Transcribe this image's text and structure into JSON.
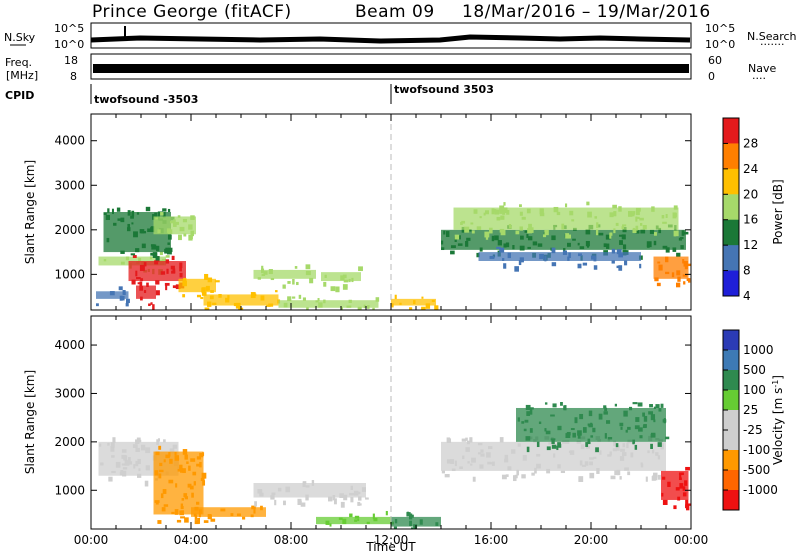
{
  "header": {
    "title": "Prince George (fitACF)",
    "beam": "Beam 09",
    "date_range": "18/Mar/2016 – 19/Mar/2016"
  },
  "strip_panels": {
    "nsky": {
      "label": "N.Sky",
      "ticks": [
        "10^5",
        "10^0"
      ]
    },
    "nsearch": {
      "label": "N.Search",
      "ticks": [
        "10^5",
        "10^0"
      ]
    },
    "freq": {
      "label_line1": "Freq.",
      "label_line2": "[MHz]",
      "ticks": [
        "18",
        "8"
      ]
    },
    "nave": {
      "label": "Nave",
      "ticks": [
        "60",
        "0"
      ]
    },
    "cpid": {
      "label": "CPID",
      "programs": [
        "twofsound -3503",
        "twofsound 3503"
      ]
    }
  },
  "colorbars": {
    "power": {
      "label": "Power [dB]",
      "ticks": [
        "28",
        "24",
        "20",
        "16",
        "12",
        "8",
        "4"
      ],
      "colors": [
        "#e41a1c",
        "#ff7f00",
        "#ffc000",
        "#a6d96a",
        "#1b7837",
        "#4575b4",
        "#1f1fd8"
      ]
    },
    "velocity": {
      "label": "Velocity",
      "unit": "[m s",
      "unit_sup": "-1",
      "unit_close": "]",
      "ticks": [
        "1000",
        "500",
        "100",
        "25",
        "-25",
        "-100",
        "-500",
        "-1000"
      ],
      "colors": [
        "#2b3bb5",
        "#3d7ab5",
        "#2f8a4f",
        "#66cc33",
        "#cfcfcf",
        "#cfcfcf",
        "#ff9900",
        "#ff6600",
        "#ee1111"
      ]
    }
  },
  "chart_data": [
    {
      "type": "heatmap",
      "panel": "power",
      "ylabel": "Slant Range [km]",
      "yticks": [
        "1000",
        "2000",
        "3000",
        "4000"
      ],
      "ylim": [
        200,
        4600
      ],
      "xlim": [
        "00:00",
        "24:00"
      ],
      "regions": [
        {
          "t0": 0.2,
          "t1": 1.5,
          "r0": 450,
          "r1": 620,
          "level": 8
        },
        {
          "t0": 0.3,
          "t1": 3.0,
          "r0": 1200,
          "r1": 1400,
          "level": 16
        },
        {
          "t0": 1.5,
          "t1": 3.8,
          "r0": 850,
          "r1": 1300,
          "level": 28
        },
        {
          "t0": 1.8,
          "t1": 2.6,
          "r0": 450,
          "r1": 750,
          "level": 28
        },
        {
          "t0": 0.5,
          "t1": 3.2,
          "r0": 1500,
          "r1": 2400,
          "level": 12
        },
        {
          "t0": 2.5,
          "t1": 4.2,
          "r0": 1900,
          "r1": 2300,
          "level": 16
        },
        {
          "t0": 3.5,
          "t1": 5.0,
          "r0": 600,
          "r1": 900,
          "level": 20
        },
        {
          "t0": 4.5,
          "t1": 7.5,
          "r0": 300,
          "r1": 550,
          "level": 20
        },
        {
          "t0": 6.5,
          "t1": 9.0,
          "r0": 900,
          "r1": 1100,
          "level": 16
        },
        {
          "t0": 9.2,
          "t1": 10.8,
          "r0": 850,
          "r1": 1050,
          "level": 16
        },
        {
          "t0": 7.5,
          "t1": 11.5,
          "r0": 250,
          "r1": 420,
          "level": 16
        },
        {
          "t0": 12.0,
          "t1": 13.8,
          "r0": 300,
          "r1": 450,
          "level": 20
        },
        {
          "t0": 14.0,
          "t1": 23.8,
          "r0": 1550,
          "r1": 2000,
          "level": 12
        },
        {
          "t0": 14.5,
          "t1": 23.5,
          "r0": 2000,
          "r1": 2500,
          "level": 16
        },
        {
          "t0": 15.5,
          "t1": 22.0,
          "r0": 1300,
          "r1": 1500,
          "level": 8
        },
        {
          "t0": 22.5,
          "t1": 23.9,
          "r0": 900,
          "r1": 1400,
          "level": 24
        }
      ]
    },
    {
      "type": "heatmap",
      "panel": "velocity",
      "ylabel": "Slant Range [km]",
      "xlabel": "Time UT",
      "yticks": [
        "1000",
        "2000",
        "3000",
        "4000"
      ],
      "xticks": [
        "00:00",
        "04:00",
        "08:00",
        "12:00",
        "16:00",
        "20:00",
        "00:00"
      ],
      "ylim": [
        200,
        4600
      ],
      "xlim": [
        "00:00",
        "24:00"
      ],
      "regions": [
        {
          "t0": 0.3,
          "t1": 3.5,
          "r0": 1300,
          "r1": 2000,
          "velocity": 0
        },
        {
          "t0": 2.5,
          "t1": 4.5,
          "r0": 500,
          "r1": 1800,
          "velocity": -300
        },
        {
          "t0": 4.0,
          "t1": 7.0,
          "r0": 450,
          "r1": 650,
          "velocity": -200
        },
        {
          "t0": 6.5,
          "t1": 11.0,
          "r0": 850,
          "r1": 1150,
          "velocity": 0
        },
        {
          "t0": 9.0,
          "t1": 12.0,
          "r0": 300,
          "r1": 450,
          "velocity": 80
        },
        {
          "t0": 12.0,
          "t1": 14.0,
          "r0": 250,
          "r1": 450,
          "velocity": 150
        },
        {
          "t0": 14.0,
          "t1": 23.0,
          "r0": 1400,
          "r1": 2000,
          "velocity": 0
        },
        {
          "t0": 17.0,
          "t1": 23.0,
          "r0": 2000,
          "r1": 2700,
          "velocity": 200
        },
        {
          "t0": 22.8,
          "t1": 23.9,
          "r0": 800,
          "r1": 1400,
          "velocity": -800
        }
      ]
    }
  ]
}
